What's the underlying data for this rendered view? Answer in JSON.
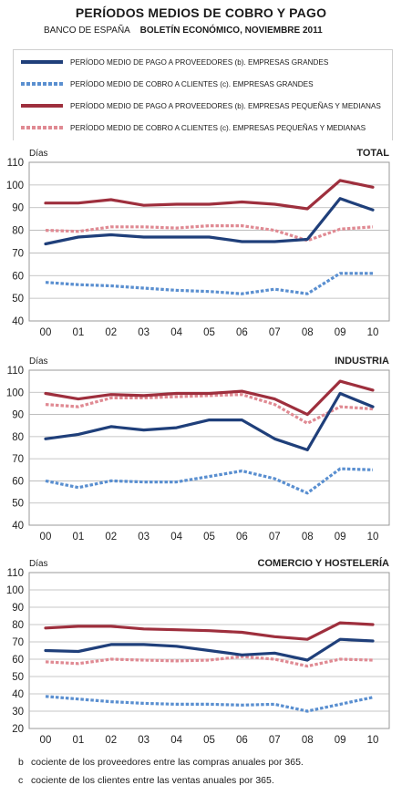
{
  "header": {
    "title": "PERÍODOS MEDIOS DE COBRO Y PAGO",
    "source": "BANCO DE ESPAÑA",
    "bulletin": "BOLETÍN ECONÓMICO, NOVIEMBRE 2011"
  },
  "legend": [
    {
      "label": "PERÍODO MEDIO DE PAGO A PROVEEDORES (b). EMPRESAS GRANDES",
      "color": "#1f3f7a",
      "style": "solid"
    },
    {
      "label": "PERÍODO MEDIO DE COBRO A CLIENTES (c). EMPRESAS GRANDES",
      "color": "#5a8fd0",
      "style": "dotted"
    },
    {
      "label": "PERÍODO MEDIO DE PAGO A PROVEEDORES (b). EMPRESAS PEQUEÑAS Y MEDIANAS",
      "color": "#9e2f3d",
      "style": "solid"
    },
    {
      "label": "PERÍODO MEDIO DE COBRO A CLIENTES (c). EMPRESAS PEQUEÑAS Y MEDIANAS",
      "color": "#e08a93",
      "style": "dotted"
    }
  ],
  "chart_data": [
    {
      "type": "line",
      "title": "TOTAL",
      "ylabel": "Días",
      "categories": [
        "00",
        "01",
        "02",
        "03",
        "04",
        "05",
        "06",
        "07",
        "08",
        "09",
        "10"
      ],
      "ylim": [
        40,
        110
      ],
      "yticks": [
        40,
        50,
        60,
        70,
        80,
        90,
        100,
        110
      ],
      "grid": true,
      "series": [
        {
          "name": "PERÍODO MEDIO DE PAGO A PROVEEDORES (b). EMPRESAS GRANDES",
          "values": [
            74,
            77,
            78,
            77,
            77,
            77,
            75,
            75,
            76,
            94,
            89
          ]
        },
        {
          "name": "PERÍODO MEDIO DE COBRO A CLIENTES (c). EMPRESAS GRANDES",
          "values": [
            57,
            56,
            55.5,
            54.5,
            53.5,
            53,
            52,
            54,
            52,
            61,
            61
          ]
        },
        {
          "name": "PERÍODO MEDIO DE PAGO A PROVEEDORES (b). EMPRESAS PEQUEÑAS Y MEDIANAS",
          "values": [
            92,
            92,
            93.5,
            91,
            91.5,
            91.5,
            92.5,
            91.5,
            89.5,
            102,
            99
          ]
        },
        {
          "name": "PERÍODO MEDIO DE COBRO A CLIENTES (c). EMPRESAS PEQUEÑAS Y MEDIANAS",
          "values": [
            80,
            79.5,
            81.5,
            81.5,
            81,
            82,
            82,
            80,
            75.5,
            80.5,
            81.5
          ]
        }
      ]
    },
    {
      "type": "line",
      "title": "INDUSTRIA",
      "ylabel": "Días",
      "categories": [
        "00",
        "01",
        "02",
        "03",
        "04",
        "05",
        "06",
        "07",
        "08",
        "09",
        "10"
      ],
      "ylim": [
        40,
        110
      ],
      "yticks": [
        40,
        50,
        60,
        70,
        80,
        90,
        100,
        110
      ],
      "grid": true,
      "series": [
        {
          "name": "PERÍODO MEDIO DE PAGO A PROVEEDORES (b). EMPRESAS GRANDES",
          "values": [
            79,
            81,
            84.5,
            83,
            84,
            87.5,
            87.5,
            79,
            74,
            99.5,
            93.5
          ]
        },
        {
          "name": "PERÍODO MEDIO DE COBRO A CLIENTES (c). EMPRESAS GRANDES",
          "values": [
            60,
            57,
            60,
            59.5,
            59.5,
            62,
            64.5,
            61,
            54.5,
            65.5,
            65
          ]
        },
        {
          "name": "PERÍODO MEDIO DE PAGO A PROVEEDORES (b). EMPRESAS PEQUEÑAS Y MEDIANAS",
          "values": [
            99.5,
            97,
            99,
            98.5,
            99.5,
            99.5,
            100.5,
            97,
            90,
            105,
            101
          ]
        },
        {
          "name": "PERÍODO MEDIO DE COBRO A CLIENTES (c). EMPRESAS PEQUEÑAS Y MEDIANAS",
          "values": [
            94.5,
            93.5,
            97.5,
            97.5,
            98,
            98.5,
            99,
            94.5,
            86,
            93.5,
            92.5
          ]
        }
      ]
    },
    {
      "type": "line",
      "title": "COMERCIO Y HOSTELERÍA",
      "ylabel": "Días",
      "categories": [
        "00",
        "01",
        "02",
        "03",
        "04",
        "05",
        "06",
        "07",
        "08",
        "09",
        "10"
      ],
      "ylim": [
        20,
        110
      ],
      "yticks": [
        20,
        30,
        40,
        50,
        60,
        70,
        80,
        90,
        100,
        110
      ],
      "grid": true,
      "series": [
        {
          "name": "PERÍODO MEDIO DE PAGO A PROVEEDORES (b). EMPRESAS GRANDES",
          "values": [
            65,
            64.5,
            68.5,
            68.5,
            67.5,
            65,
            62.5,
            63.5,
            59.5,
            71.5,
            70.5
          ]
        },
        {
          "name": "PERÍODO MEDIO DE COBRO A CLIENTES (c). EMPRESAS GRANDES",
          "values": [
            38.5,
            37,
            35.5,
            34.5,
            34,
            34,
            33.5,
            34,
            30,
            34,
            38
          ]
        },
        {
          "name": "PERÍODO MEDIO DE PAGO A PROVEEDORES (b). EMPRESAS PEQUEÑAS Y MEDIANAS",
          "values": [
            78,
            79,
            79,
            77.5,
            77,
            76.5,
            75.5,
            73,
            71.5,
            81,
            80
          ]
        },
        {
          "name": "PERÍODO MEDIO DE COBRO A CLIENTES (c). EMPRESAS PEQUEÑAS Y MEDIANAS",
          "values": [
            58.5,
            57.5,
            60,
            59.5,
            59,
            59.5,
            61.5,
            60,
            56,
            60,
            59.5
          ]
        }
      ]
    }
  ],
  "footnotes": [
    {
      "key": "b",
      "text": "cociente de los proveedores entre las compras anuales por 365."
    },
    {
      "key": "c",
      "text": "cociente de los clientes entre las ventas anuales por 365."
    }
  ]
}
